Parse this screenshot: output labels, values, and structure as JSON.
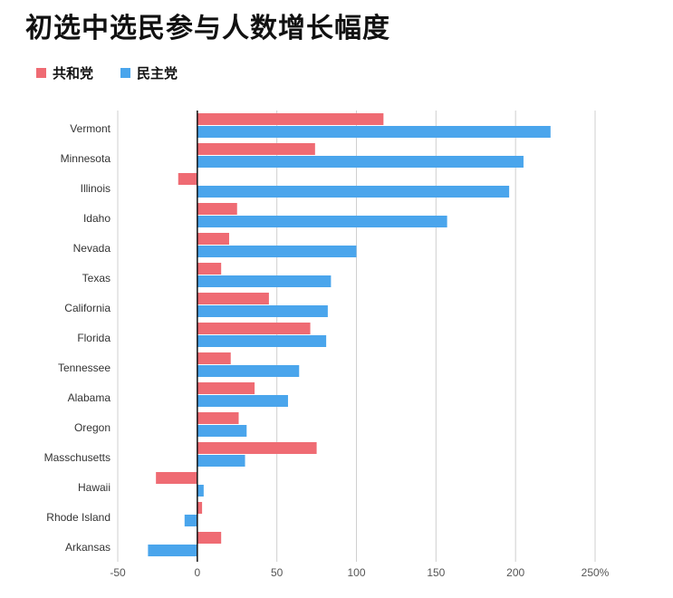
{
  "title": "初选中选民参与人数增长幅度",
  "legend": [
    {
      "label": "共和党",
      "color": "#ef6b73"
    },
    {
      "label": "民主党",
      "color": "#4aa5ec"
    }
  ],
  "chart_data": {
    "type": "bar",
    "orientation": "horizontal",
    "title": "初选中选民参与人数增长幅度",
    "categories": [
      "Vermont",
      "Minnesota",
      "Illinois",
      "Idaho",
      "Nevada",
      "Texas",
      "California",
      "Florida",
      "Tennessee",
      "Alabama",
      "Oregon",
      "Masschusetts",
      "Hawaii",
      "Rhode Island",
      "Arkansas"
    ],
    "series": [
      {
        "name": "共和党",
        "color": "#ef6b73",
        "values": [
          117,
          74,
          -12,
          25,
          20,
          15,
          45,
          71,
          21,
          36,
          26,
          75,
          -26,
          3,
          15
        ]
      },
      {
        "name": "民主党",
        "color": "#4aa5ec",
        "values": [
          222,
          205,
          196,
          157,
          100,
          84,
          82,
          81,
          64,
          57,
          31,
          30,
          4,
          -8,
          -31
        ]
      }
    ],
    "xlim": [
      -50,
      250
    ],
    "xticks": [
      -50,
      0,
      50,
      100,
      150,
      200,
      250
    ],
    "xtick_labels": [
      "-50",
      "0",
      "50",
      "100",
      "150",
      "200",
      "250%"
    ],
    "grid": true,
    "legend_position": "top-left"
  }
}
